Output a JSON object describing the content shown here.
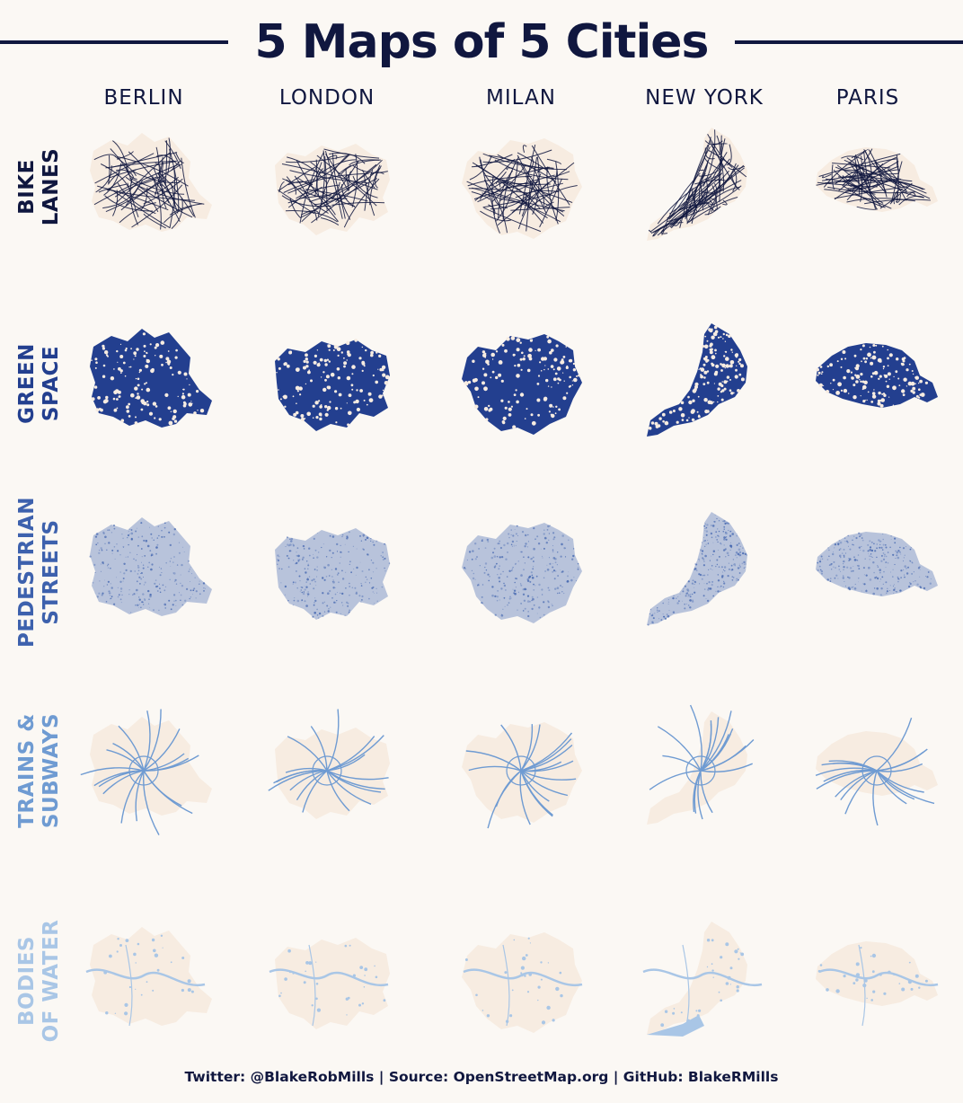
{
  "title": "5 Maps of 5 Cities",
  "columns": [
    "BERLIN",
    "LONDON",
    "MILAN",
    "NEW YORK",
    "PARIS"
  ],
  "rows": [
    {
      "lines": [
        "BIKE",
        "LANES"
      ],
      "color": "#10173f",
      "style": "network"
    },
    {
      "lines": [
        "GREEN",
        "SPACE"
      ],
      "color": "#233f8f",
      "style": "fill"
    },
    {
      "lines": [
        "PEDESTRIAN",
        "STREETS"
      ],
      "color": "#3d61ad",
      "style": "texture"
    },
    {
      "lines": [
        "TRAINS &",
        "SUBWAYS"
      ],
      "color": "#6f9bd2",
      "style": "rail"
    },
    {
      "lines": [
        "BODIES",
        "OF WATER"
      ],
      "color": "#a9c6e6",
      "style": "water"
    }
  ],
  "colors": {
    "background": "#fbf8f4",
    "city_base": "#f7ece1",
    "title": "#10173f"
  },
  "footer": "Twitter: @BlakeRobMills | Source: OpenStreetMap.org | GitHub: BlakeRMills"
}
